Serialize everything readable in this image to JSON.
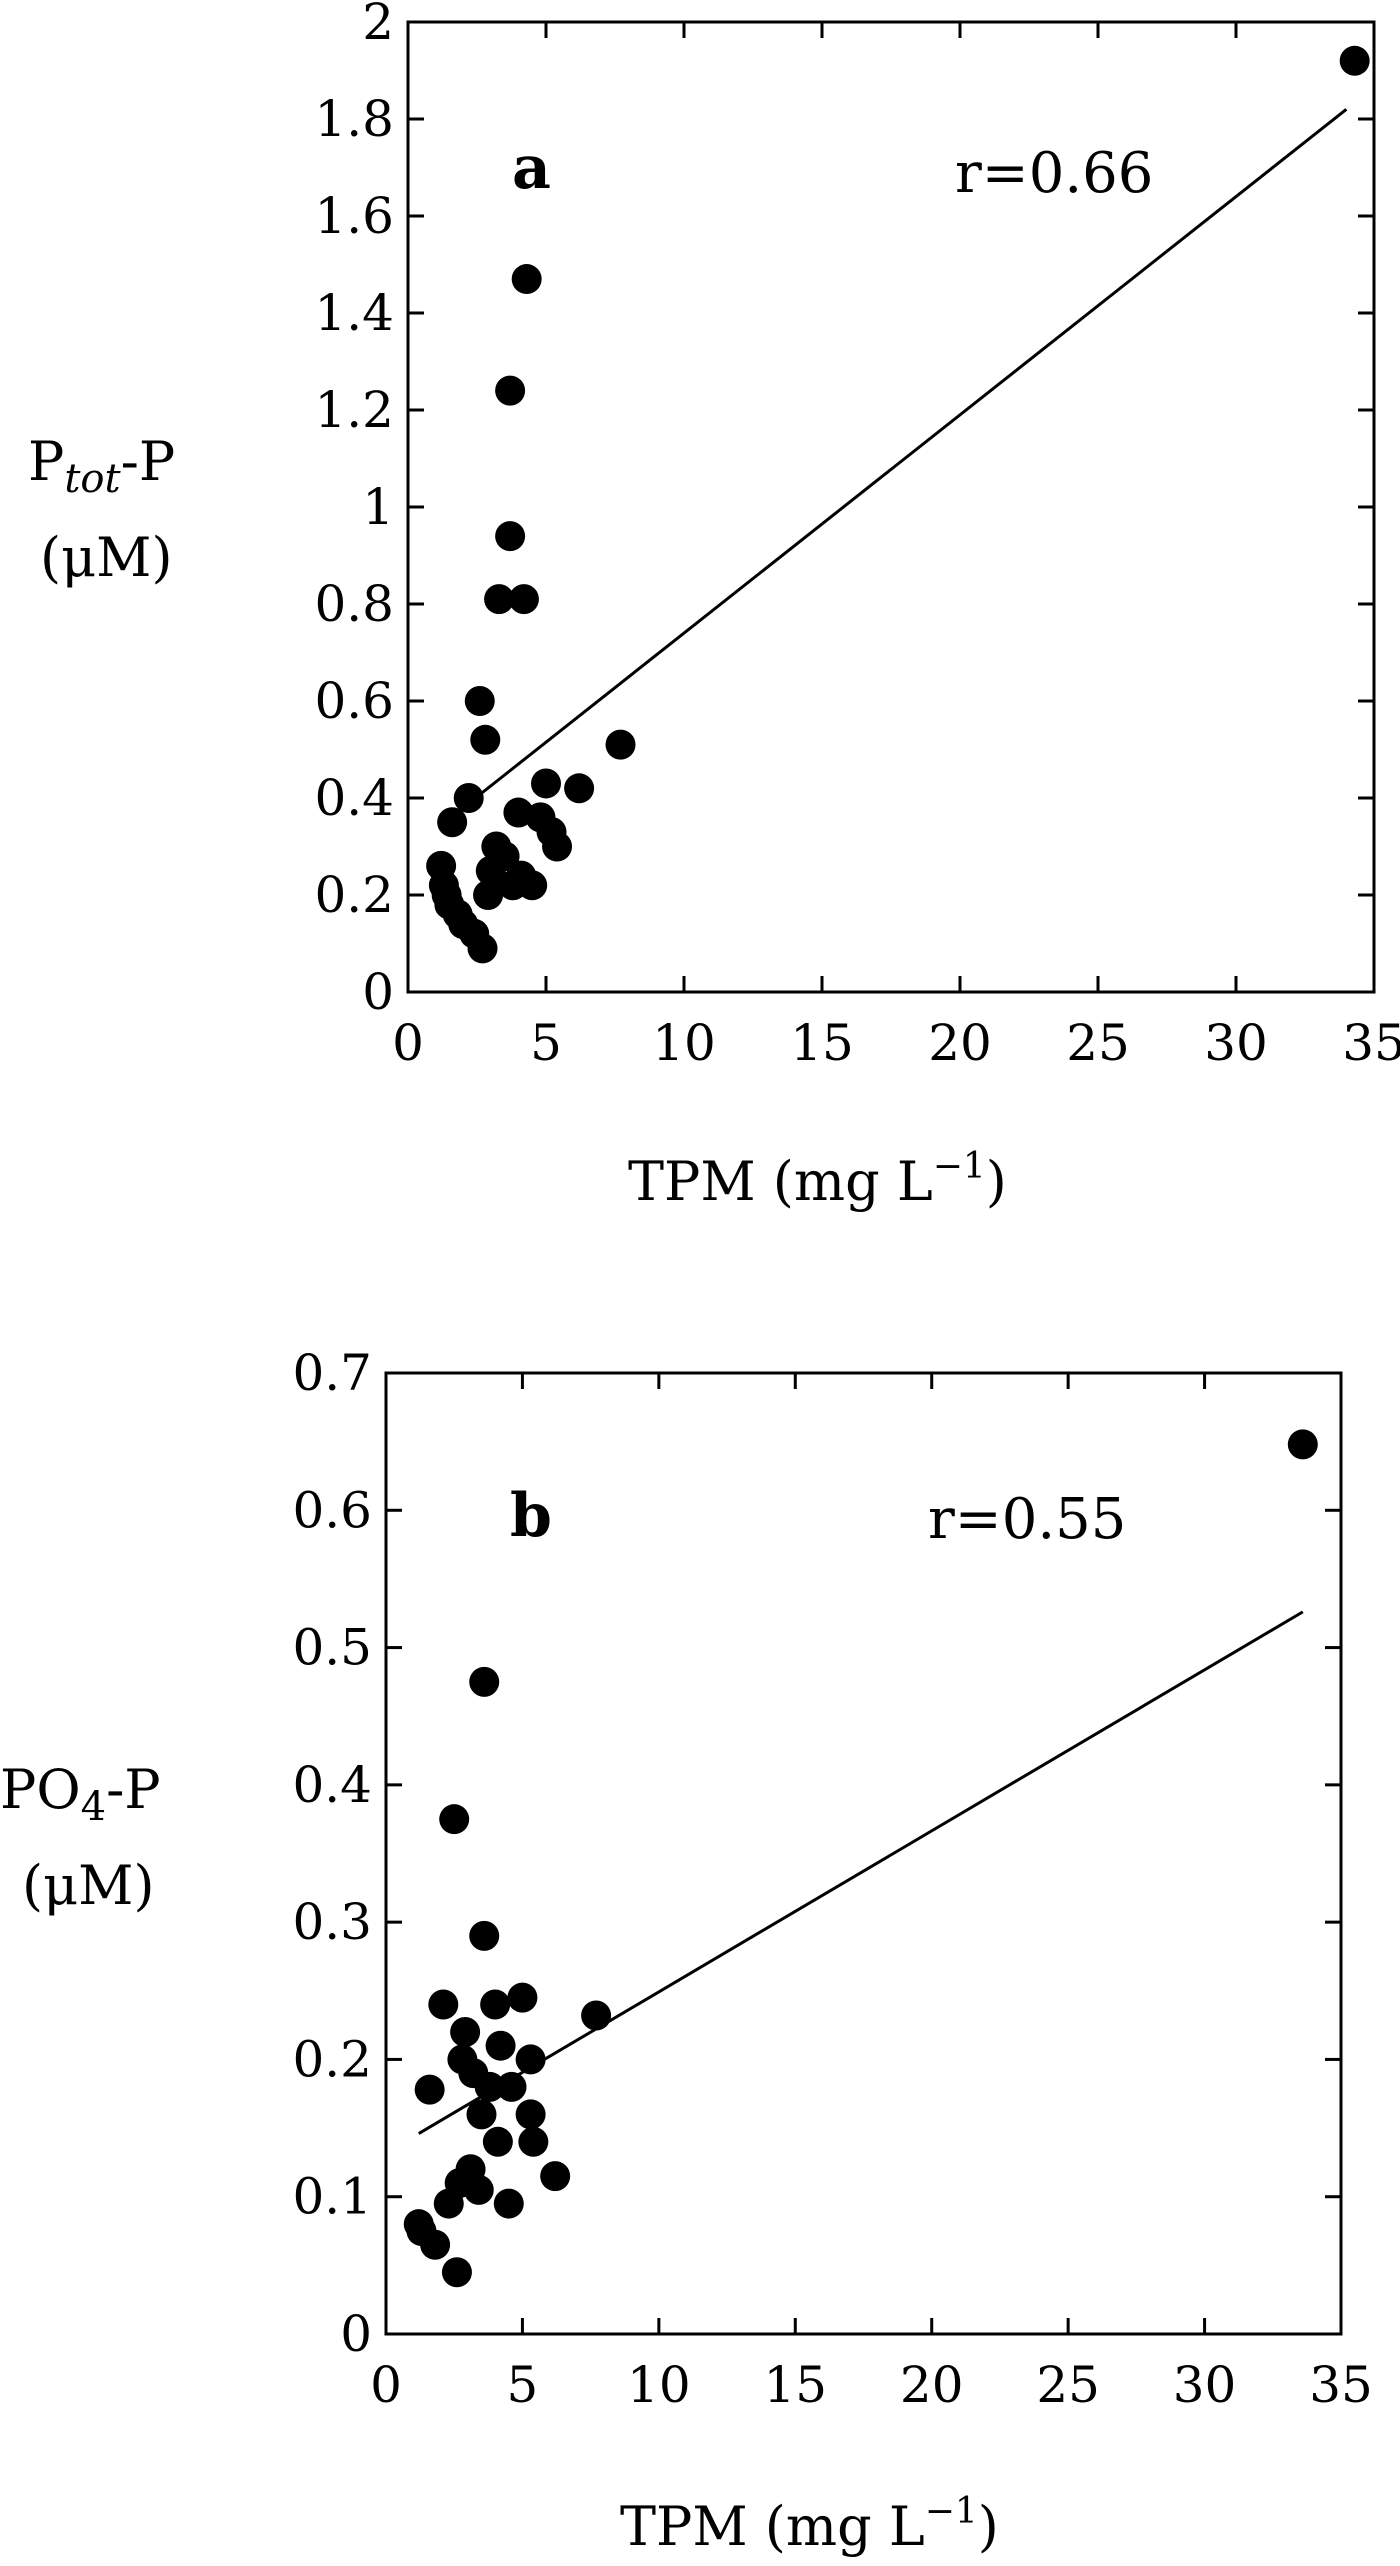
{
  "chart_data": [
    {
      "type": "scatter",
      "panel_label": "a",
      "annotation": "r=0.66",
      "xlabel": "TPM (mg L",
      "xlabel_sup": "−1",
      "xlabel_close": ")",
      "ylabel_main": "P",
      "ylabel_sub": "tot",
      "ylabel_tail": "-P",
      "ylabel_unit": "(μM)",
      "xlim": [
        0,
        35
      ],
      "ylim": [
        0,
        2
      ],
      "xticks": [
        0,
        5,
        10,
        15,
        20,
        25,
        30,
        35
      ],
      "xtick_labels": [
        "0",
        "5",
        "10",
        "15",
        "20",
        "25",
        "30",
        "35"
      ],
      "yticks": [
        0,
        0.2,
        0.4,
        0.6,
        0.8,
        1,
        1.2,
        1.4,
        1.6,
        1.8,
        2
      ],
      "ytick_labels": [
        "0",
        "0.2",
        "0.4",
        "0.6",
        "0.8",
        "1",
        "1.2",
        "1.4",
        "1.6",
        "1.8",
        "2"
      ],
      "grid": false,
      "legend": "none",
      "regression_line": {
        "x": [
          2,
          34
        ],
        "y": [
          0.38,
          1.82
        ]
      },
      "points": [
        {
          "x": 1.2,
          "y": 0.26
        },
        {
          "x": 1.3,
          "y": 0.22
        },
        {
          "x": 1.4,
          "y": 0.2
        },
        {
          "x": 1.5,
          "y": 0.18
        },
        {
          "x": 1.6,
          "y": 0.35
        },
        {
          "x": 1.8,
          "y": 0.16
        },
        {
          "x": 2.0,
          "y": 0.14
        },
        {
          "x": 2.2,
          "y": 0.4
        },
        {
          "x": 2.4,
          "y": 0.12
        },
        {
          "x": 2.6,
          "y": 0.6
        },
        {
          "x": 2.7,
          "y": 0.09
        },
        {
          "x": 2.8,
          "y": 0.52
        },
        {
          "x": 2.9,
          "y": 0.2
        },
        {
          "x": 3.0,
          "y": 0.25
        },
        {
          "x": 3.2,
          "y": 0.3
        },
        {
          "x": 3.3,
          "y": 0.81
        },
        {
          "x": 3.5,
          "y": 0.28
        },
        {
          "x": 3.7,
          "y": 0.94
        },
        {
          "x": 3.7,
          "y": 1.24
        },
        {
          "x": 3.8,
          "y": 0.22
        },
        {
          "x": 4.0,
          "y": 0.37
        },
        {
          "x": 4.1,
          "y": 0.24
        },
        {
          "x": 4.2,
          "y": 0.81
        },
        {
          "x": 4.3,
          "y": 1.47
        },
        {
          "x": 4.5,
          "y": 0.22
        },
        {
          "x": 4.8,
          "y": 0.36
        },
        {
          "x": 5.0,
          "y": 0.43
        },
        {
          "x": 5.2,
          "y": 0.33
        },
        {
          "x": 5.4,
          "y": 0.3
        },
        {
          "x": 6.2,
          "y": 0.42
        },
        {
          "x": 7.7,
          "y": 0.51
        },
        {
          "x": 34.3,
          "y": 1.92
        }
      ]
    },
    {
      "type": "scatter",
      "panel_label": "b",
      "annotation": "r=0.55",
      "xlabel": "TPM (mg L",
      "xlabel_sup": "−1",
      "xlabel_close": ")",
      "ylabel_main": "PO",
      "ylabel_sub": "4",
      "ylabel_tail": "-P",
      "ylabel_unit": "(μM)",
      "xlim": [
        0,
        35
      ],
      "ylim": [
        0,
        0.7
      ],
      "xticks": [
        0,
        5,
        10,
        15,
        20,
        25,
        30,
        35
      ],
      "xtick_labels": [
        "0",
        "5",
        "10",
        "15",
        "20",
        "25",
        "30",
        "35"
      ],
      "yticks": [
        0,
        0.1,
        0.2,
        0.3,
        0.4,
        0.5,
        0.6,
        0.7
      ],
      "ytick_labels": [
        "0",
        "0.1",
        "0.2",
        "0.3",
        "0.4",
        "0.5",
        "0.6",
        "0.7"
      ],
      "grid": false,
      "legend": "none",
      "regression_line": {
        "x": [
          1.2,
          33.6
        ],
        "y": [
          0.146,
          0.526
        ]
      },
      "points": [
        {
          "x": 1.2,
          "y": 0.08
        },
        {
          "x": 1.3,
          "y": 0.075
        },
        {
          "x": 1.6,
          "y": 0.178
        },
        {
          "x": 1.8,
          "y": 0.065
        },
        {
          "x": 2.1,
          "y": 0.24
        },
        {
          "x": 2.3,
          "y": 0.095
        },
        {
          "x": 2.5,
          "y": 0.375
        },
        {
          "x": 2.6,
          "y": 0.045
        },
        {
          "x": 2.7,
          "y": 0.11
        },
        {
          "x": 2.8,
          "y": 0.2
        },
        {
          "x": 2.9,
          "y": 0.22
        },
        {
          "x": 3.1,
          "y": 0.12
        },
        {
          "x": 3.2,
          "y": 0.19
        },
        {
          "x": 3.4,
          "y": 0.105
        },
        {
          "x": 3.5,
          "y": 0.16
        },
        {
          "x": 3.6,
          "y": 0.29
        },
        {
          "x": 3.6,
          "y": 0.475
        },
        {
          "x": 3.8,
          "y": 0.18
        },
        {
          "x": 4.0,
          "y": 0.24
        },
        {
          "x": 4.1,
          "y": 0.14
        },
        {
          "x": 4.2,
          "y": 0.21
        },
        {
          "x": 4.5,
          "y": 0.095
        },
        {
          "x": 4.6,
          "y": 0.18
        },
        {
          "x": 5.0,
          "y": 0.245
        },
        {
          "x": 5.3,
          "y": 0.2
        },
        {
          "x": 5.3,
          "y": 0.16
        },
        {
          "x": 5.4,
          "y": 0.14
        },
        {
          "x": 6.2,
          "y": 0.115
        },
        {
          "x": 7.7,
          "y": 0.232
        },
        {
          "x": 33.6,
          "y": 0.648
        }
      ]
    }
  ]
}
